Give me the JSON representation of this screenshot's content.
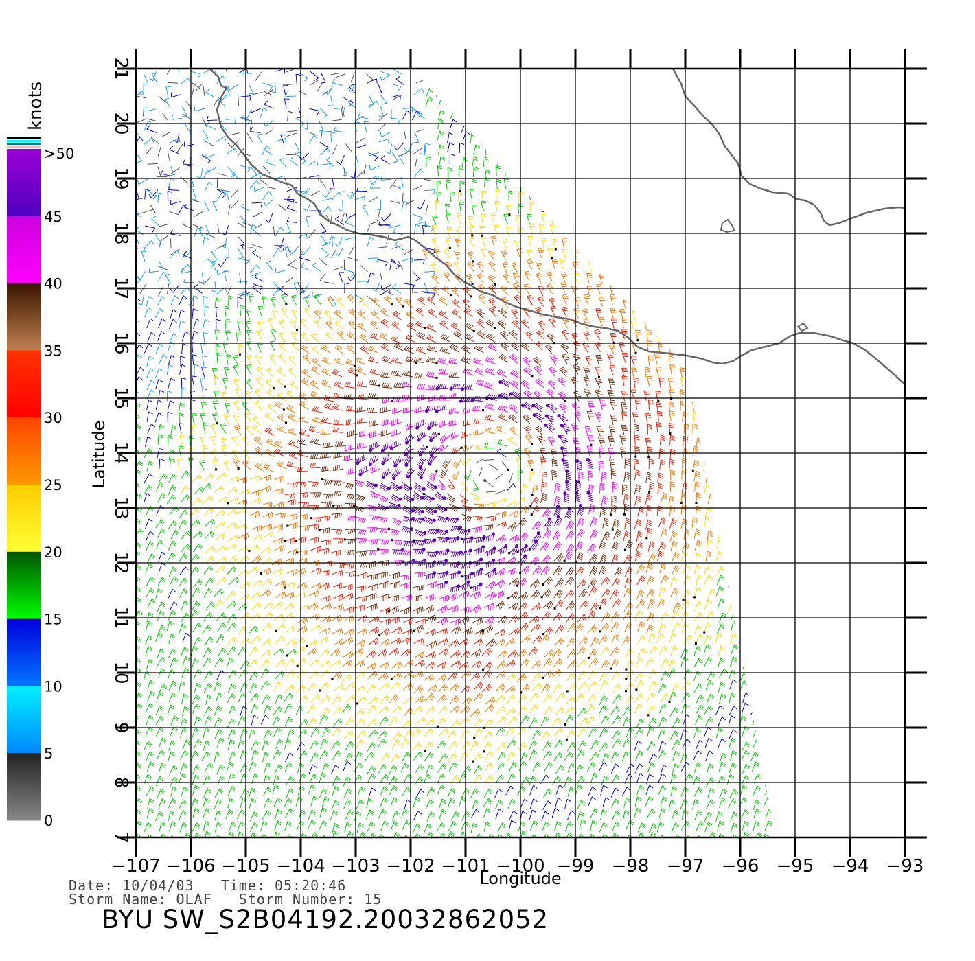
{
  "map": {
    "lon_ticks": [
      "−107",
      "−106",
      "−105",
      "−104",
      "−103",
      "−102",
      "−101",
      "−100",
      "−99",
      "−98",
      "−97",
      "−96",
      "−95",
      "−94",
      "−93"
    ],
    "lat_ticks": [
      "7",
      "8",
      "9",
      "10",
      "11",
      "12",
      "13",
      "14",
      "15",
      "16",
      "17",
      "18",
      "19",
      "20",
      "21"
    ],
    "lon_range": [
      -107,
      -93
    ],
    "lat_range": [
      7,
      21
    ],
    "xlabel": "Longitude",
    "ylabel": "Latitude",
    "storm_center": {
      "lon": -100.5,
      "lat": 13.6
    },
    "land_color": "#666666"
  },
  "colorbar": {
    "unit": "knots",
    "labels": [
      ">50",
      "45",
      "40",
      "35",
      "30",
      "25",
      "20",
      "15",
      "10",
      "5",
      "0"
    ],
    "colors": {
      "0-5": "#555555",
      "5-10": "#1aa0ff",
      "10-15": "#0000ff",
      "15-20": "#00cc00",
      "20-25": "#ffdd00",
      "25-30": "#ff7700",
      "30-35": "#ff1a00",
      "35-40": "#7a3010",
      "40-45": "#ff00ff",
      "45-50": "#6000c0"
    }
  },
  "info": {
    "line1": "Date: 10/04/03   Time: 05:20:46",
    "line2": "Storm Name: OLAF   Storm Number: 15",
    "file_id": "BYU SW_S2B04192.20032862052"
  }
}
